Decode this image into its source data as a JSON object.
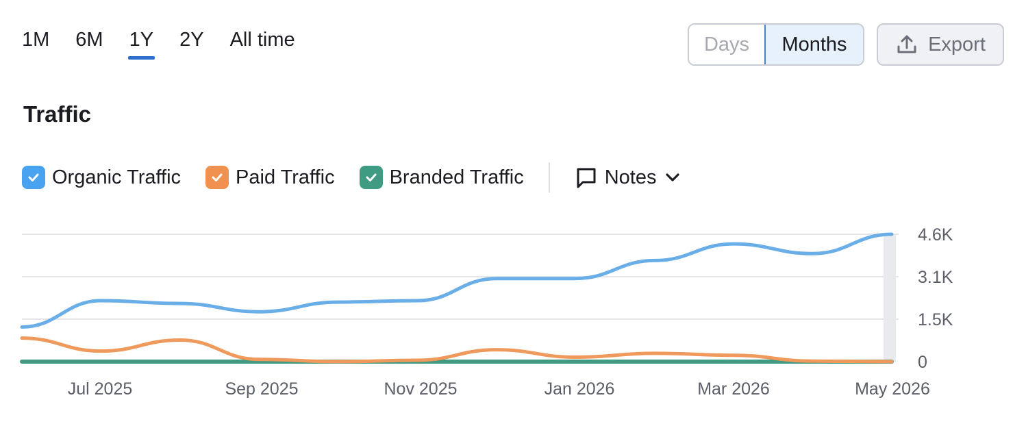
{
  "periods": [
    "1M",
    "6M",
    "1Y",
    "2Y",
    "All time"
  ],
  "active_period": "1Y",
  "granularity": {
    "days_label": "Days",
    "months_label": "Months",
    "selected": "Months"
  },
  "export": {
    "label": "Export",
    "icon": "upload-icon"
  },
  "title": "Traffic",
  "legend": {
    "items": [
      {
        "label": "Organic Traffic",
        "color": "#4aa3f0",
        "checked": true
      },
      {
        "label": "Paid Traffic",
        "color": "#f0914f",
        "checked": true
      },
      {
        "label": "Branded Traffic",
        "color": "#3f9b82",
        "checked": true
      }
    ],
    "notes_label": "Notes",
    "notes_icon": "comment-icon"
  },
  "chart_data": {
    "type": "line",
    "x_labels": [
      "Jul 2025",
      "Sep 2025",
      "Nov 2025",
      "Jan 2026",
      "Mar 2026",
      "May 2026"
    ],
    "y_ticks": [
      "4.6K",
      "3.1K",
      "1.5K",
      "0"
    ],
    "ylim": [
      0,
      4600
    ],
    "grid": true,
    "legend_position": "top-left",
    "x": [
      "2025-06-01",
      "2025-07-01",
      "2025-08-01",
      "2025-09-01",
      "2025-10-01",
      "2025-11-01",
      "2025-12-01",
      "2026-01-01",
      "2026-02-01",
      "2026-03-01",
      "2026-04-01",
      "2026-05-01"
    ],
    "series": [
      {
        "name": "Organic Traffic",
        "color": "#6aaee8",
        "values": [
          1250,
          2200,
          2100,
          1800,
          2150,
          2200,
          3000,
          3000,
          3650,
          4250,
          3900,
          4600
        ]
      },
      {
        "name": "Paid Traffic",
        "color": "#ef9a5c",
        "values": [
          850,
          380,
          780,
          80,
          0,
          50,
          430,
          160,
          300,
          230,
          20,
          0
        ]
      },
      {
        "name": "Branded Traffic",
        "color": "#3f9b82",
        "values": [
          0,
          0,
          0,
          0,
          0,
          0,
          0,
          0,
          0,
          0,
          0,
          0
        ]
      }
    ]
  }
}
